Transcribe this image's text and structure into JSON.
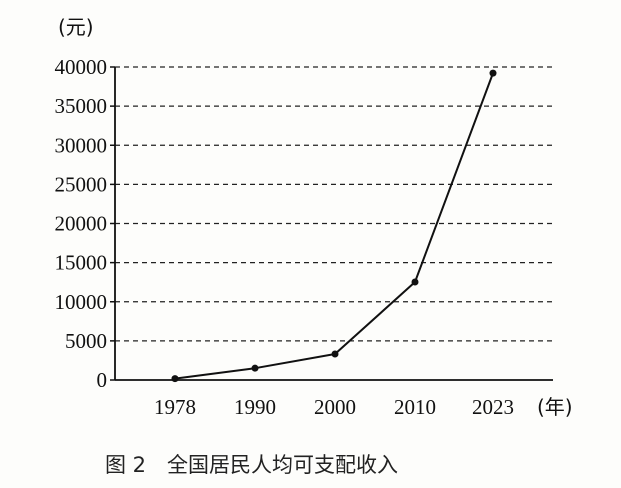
{
  "chart_data": {
    "type": "line",
    "x": [
      "1978",
      "1990",
      "2000",
      "2010",
      "2023"
    ],
    "series": [
      {
        "values": [
          171,
          1510,
          3321,
          12520,
          39218
        ]
      }
    ],
    "y_unit_label": "(元)",
    "x_unit_label": "(年)",
    "y_ticks": [
      0,
      5000,
      10000,
      15000,
      20000,
      25000,
      30000,
      35000,
      40000
    ],
    "ylim": [
      0,
      40000
    ],
    "grid": "dashed horizontal",
    "caption": "图 2　全国居民人均可支配收入"
  }
}
